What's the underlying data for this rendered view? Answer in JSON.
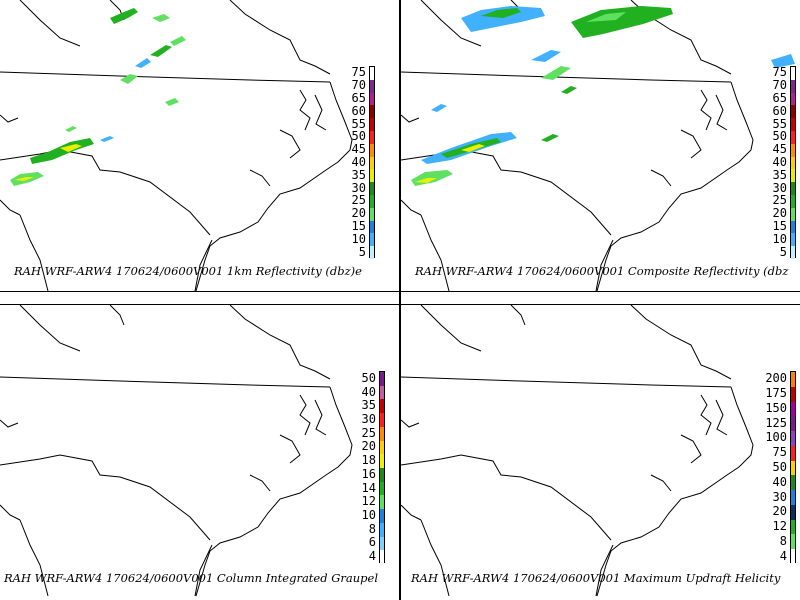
{
  "panels": [
    {
      "id": "reflectivity-1km",
      "caption": "RAH WRF-ARW4 170624/0600V001  1km Reflectivity (dbz)e",
      "legend": {
        "labels": [
          "75",
          "70",
          "65",
          "60",
          "55",
          "50",
          "45",
          "40",
          "35",
          "30",
          "25",
          "20",
          "15",
          "10",
          "5"
        ],
        "colors": [
          "#ffffff",
          "#7a2a8c",
          "#b0208f",
          "#8b0000",
          "#c40000",
          "#ff2020",
          "#ff8c00",
          "#ffd000",
          "#e6f000",
          "#1c8a1c",
          "#20b020",
          "#60e060",
          "#2080e0",
          "#40b0ff",
          "#c0f0ff"
        ]
      }
    },
    {
      "id": "composite-reflectivity",
      "caption": "RAH WRF-ARW4 170624/0600V001  Composite Reflectivity (dbz",
      "legend": {
        "labels": [
          "75",
          "70",
          "65",
          "60",
          "55",
          "50",
          "45",
          "40",
          "35",
          "30",
          "25",
          "20",
          "15",
          "10",
          "5"
        ],
        "colors": [
          "#ffffff",
          "#7a2a8c",
          "#b0208f",
          "#8b0000",
          "#c40000",
          "#ff2020",
          "#ff8c00",
          "#ffd000",
          "#e6f000",
          "#1c8a1c",
          "#20b020",
          "#60e060",
          "#2080e0",
          "#40b0ff",
          "#c0f0ff"
        ]
      }
    },
    {
      "id": "column-integrated-graupel",
      "caption": "RAH WRF-ARW4 170624/0600V001  Column Integrated Graupel",
      "legend": {
        "labels": [
          "50",
          "40",
          "35",
          "30",
          "25",
          "20",
          "18",
          "16",
          "14",
          "12",
          "10",
          "8",
          "6",
          "4"
        ],
        "colors": [
          "#7a1a8c",
          "#c060a0",
          "#c40000",
          "#ff2020",
          "#ff8c00",
          "#ffd000",
          "#f0f000",
          "#1c8a1c",
          "#20b020",
          "#60e060",
          "#2080e0",
          "#40b0ff",
          "#80d0ff",
          "#ffffff"
        ]
      }
    },
    {
      "id": "maximum-updraft-helicity",
      "caption": "RAH WRF-ARW4 170624/0600V001  Maximum Updraft Helicity",
      "legend": {
        "labels": [
          "200",
          "175",
          "150",
          "125",
          "100",
          "75",
          "50",
          "40",
          "30",
          "20",
          "12",
          "8",
          "4"
        ],
        "colors": [
          "#ff8000",
          "#c00000",
          "#a000a0",
          "#7a1a8c",
          "#9040c0",
          "#ff2020",
          "#ffd000",
          "#1c8a1c",
          "#2080e0",
          "#103060",
          "#20b020",
          "#60e060",
          "#ffffff"
        ]
      }
    }
  ]
}
